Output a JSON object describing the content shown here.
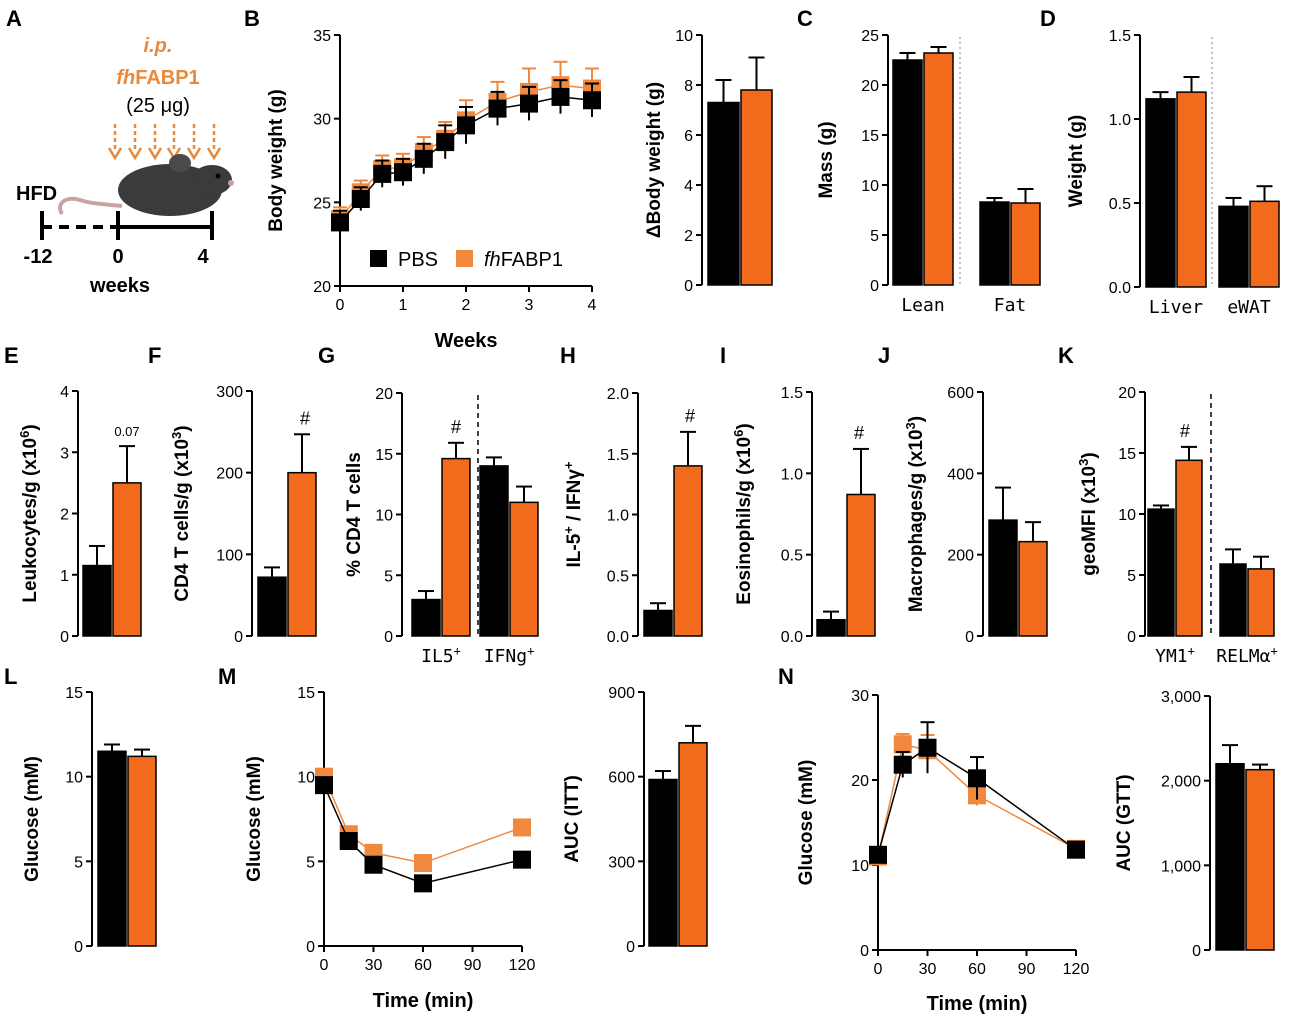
{
  "colors": {
    "pbs": "#000000",
    "fhfabp1": "#f26a1b",
    "marker_orange": "#f0883d",
    "schematic": "#e8893b"
  },
  "legend": {
    "pbs": "PBS",
    "fh": "fh",
    "fabp": "FABP1"
  },
  "panelA": {
    "label": "A",
    "ip": "i.p.",
    "fh": "fh",
    "fabp": "FABP1",
    "dose": "(25 μg)",
    "hfd": "HFD",
    "t1": "-12",
    "t2": "0",
    "t3": "4",
    "weeks": "weeks",
    "icons": [
      "mouse-icon",
      "dashed-arrow-icon"
    ]
  },
  "chart_data": [
    {
      "panel": "B1",
      "type": "line",
      "title": "",
      "xlabel": "Weeks",
      "ylabel": "Body weight (g)",
      "xlim": [
        0,
        4
      ],
      "ylim": [
        20,
        35
      ],
      "xticks": [
        "0",
        "1",
        "2",
        "3",
        "4"
      ],
      "yticks": [
        "20",
        "25",
        "30",
        "35"
      ],
      "series": [
        {
          "name": "PBS",
          "x": [
            0,
            0.33,
            0.67,
            1,
            1.33,
            1.67,
            2,
            2.5,
            3,
            3.5,
            4
          ],
          "y": [
            23.8,
            25.2,
            26.7,
            26.8,
            27.6,
            28.6,
            29.6,
            30.6,
            30.9,
            31.3,
            31.1
          ],
          "err": [
            0.7,
            0.7,
            0.8,
            0.8,
            0.9,
            1.0,
            1.1,
            1.0,
            1.0,
            1.0,
            1.0
          ]
        },
        {
          "name": "fhFABP1",
          "x": [
            0,
            0.33,
            0.67,
            1,
            1.33,
            1.67,
            2,
            2.5,
            3,
            3.5,
            4
          ],
          "y": [
            24.0,
            25.6,
            27.0,
            27.1,
            28.0,
            28.8,
            29.9,
            31.0,
            31.6,
            32.0,
            31.8
          ],
          "err": [
            0.7,
            0.7,
            0.8,
            0.8,
            0.9,
            1.0,
            1.2,
            1.2,
            1.4,
            1.4,
            1.2
          ]
        }
      ]
    },
    {
      "panel": "B2",
      "type": "bar",
      "ylabel": "ΔBody weight (g)",
      "ylim": [
        0,
        10
      ],
      "yticks": [
        "0",
        "2",
        "4",
        "6",
        "8",
        "10"
      ],
      "categories": [
        ""
      ],
      "series": [
        {
          "name": "PBS",
          "values": [
            7.3
          ],
          "err": [
            0.9
          ]
        },
        {
          "name": "fhFABP1",
          "values": [
            7.8
          ],
          "err": [
            1.3
          ]
        }
      ]
    },
    {
      "panel": "C",
      "label": "C",
      "type": "bar",
      "ylabel": "Mass (g)",
      "ylim": [
        0,
        25
      ],
      "yticks": [
        "0",
        "5",
        "10",
        "15",
        "20",
        "25"
      ],
      "categories": [
        "Lean",
        "Fat"
      ],
      "series": [
        {
          "name": "PBS",
          "values": [
            22.5,
            8.3
          ],
          "err": [
            0.7,
            0.4
          ]
        },
        {
          "name": "fhFABP1",
          "values": [
            23.2,
            8.2
          ],
          "err": [
            0.6,
            1.4
          ]
        }
      ]
    },
    {
      "panel": "D",
      "label": "D",
      "type": "bar",
      "ylabel": "Weight (g)",
      "ylim": [
        0,
        1.5
      ],
      "yticks": [
        "0.0",
        "0.5",
        "1.0",
        "1.5"
      ],
      "categories": [
        "Liver",
        "eWAT"
      ],
      "series": [
        {
          "name": "PBS",
          "values": [
            1.12,
            0.48
          ],
          "err": [
            0.04,
            0.05
          ]
        },
        {
          "name": "fhFABP1",
          "values": [
            1.16,
            0.51
          ],
          "err": [
            0.09,
            0.09
          ]
        }
      ]
    },
    {
      "panel": "E",
      "label": "E",
      "type": "bar",
      "ylabel": "Leukocytes/g (x10",
      "ysup": "6",
      "yclose": ")",
      "ylim": [
        0,
        4
      ],
      "yticks": [
        "0",
        "1",
        "2",
        "3",
        "4"
      ],
      "categories": [
        ""
      ],
      "series": [
        {
          "name": "PBS",
          "values": [
            1.15
          ],
          "err": [
            0.32
          ]
        },
        {
          "name": "fhFABP1",
          "values": [
            2.5
          ],
          "err": [
            0.6
          ]
        }
      ],
      "annotation": "0.07"
    },
    {
      "panel": "F",
      "label": "F",
      "type": "bar",
      "ylabel": "CD4 T cells/g (x10",
      "ysup": "3",
      "yclose": ")",
      "ylim": [
        0,
        300
      ],
      "yticks": [
        "0",
        "100",
        "200",
        "300"
      ],
      "categories": [
        ""
      ],
      "series": [
        {
          "name": "PBS",
          "values": [
            72
          ],
          "err": [
            12
          ]
        },
        {
          "name": "fhFABP1",
          "values": [
            200
          ],
          "err": [
            47
          ]
        }
      ],
      "annotation": "#"
    },
    {
      "panel": "G",
      "label": "G",
      "type": "bar",
      "ylabel": "% CD4 T cells",
      "ylim": [
        0,
        20
      ],
      "yticks": [
        "0",
        "5",
        "10",
        "15",
        "20"
      ],
      "categories": [
        "IL5",
        "IFNg"
      ],
      "series": [
        {
          "name": "PBS",
          "values": [
            3.0,
            14.0
          ],
          "err": [
            0.7,
            0.7
          ]
        },
        {
          "name": "fhFABP1",
          "values": [
            14.6,
            11.0
          ],
          "err": [
            1.3,
            1.3
          ]
        }
      ],
      "annotation": "#"
    },
    {
      "panel": "H",
      "label": "H",
      "type": "bar",
      "ylabel": "IL-5",
      "ysup": "+",
      "ymid": " / IFNγ",
      "ysup2": "+",
      "ylim": [
        0,
        2
      ],
      "yticks": [
        "0.0",
        "0.5",
        "1.0",
        "1.5",
        "2.0"
      ],
      "categories": [
        ""
      ],
      "series": [
        {
          "name": "PBS",
          "values": [
            0.21
          ],
          "err": [
            0.06
          ]
        },
        {
          "name": "fhFABP1",
          "values": [
            1.4
          ],
          "err": [
            0.28
          ]
        }
      ],
      "annotation": "#"
    },
    {
      "panel": "I",
      "label": "I",
      "type": "bar",
      "ylabel": "Eosinophils/g (x10",
      "ysup": "6",
      "yclose": ")",
      "ylim": [
        0,
        1.5
      ],
      "yticks": [
        "0.0",
        "0.5",
        "1.0",
        "1.5"
      ],
      "categories": [
        ""
      ],
      "series": [
        {
          "name": "PBS",
          "values": [
            0.1
          ],
          "err": [
            0.05
          ]
        },
        {
          "name": "fhFABP1",
          "values": [
            0.87
          ],
          "err": [
            0.28
          ]
        }
      ],
      "annotation": "#"
    },
    {
      "panel": "J",
      "label": "J",
      "type": "bar",
      "ylabel": "Macrophages/g (x10",
      "ysup": "3",
      "yclose": ")",
      "ylim": [
        0,
        600
      ],
      "yticks": [
        "0",
        "200",
        "400",
        "600"
      ],
      "categories": [
        ""
      ],
      "series": [
        {
          "name": "PBS",
          "values": [
            285
          ],
          "err": [
            80
          ]
        },
        {
          "name": "fhFABP1",
          "values": [
            232
          ],
          "err": [
            48
          ]
        }
      ]
    },
    {
      "panel": "K",
      "label": "K",
      "type": "bar",
      "ylabel": "geoMFI (x10",
      "ysup": "3",
      "yclose": ")",
      "ylim": [
        0,
        20
      ],
      "yticks": [
        "0",
        "5",
        "10",
        "15",
        "20"
      ],
      "categories": [
        "YM1",
        "RELMα"
      ],
      "series": [
        {
          "name": "PBS",
          "values": [
            10.4,
            5.9
          ],
          "err": [
            0.3,
            1.2
          ]
        },
        {
          "name": "fhFABP1",
          "values": [
            14.4,
            5.5
          ],
          "err": [
            1.1,
            1.0
          ]
        }
      ],
      "annotation": "#"
    },
    {
      "panel": "L",
      "label": "L",
      "type": "bar",
      "ylabel": "Glucose (mM)",
      "ylim": [
        0,
        15
      ],
      "yticks": [
        "0",
        "5",
        "10",
        "15"
      ],
      "categories": [
        ""
      ],
      "series": [
        {
          "name": "PBS",
          "values": [
            11.5
          ],
          "err": [
            0.4
          ]
        },
        {
          "name": "fhFABP1",
          "values": [
            11.2
          ],
          "err": [
            0.4
          ]
        }
      ]
    },
    {
      "panel": "M1",
      "label": "M",
      "type": "line",
      "xlabel": "Time (min)",
      "ylabel": "Glucose (mM)",
      "xlim": [
        0,
        120
      ],
      "ylim": [
        0,
        15
      ],
      "xticks": [
        "0",
        "30",
        "60",
        "90",
        "120"
      ],
      "yticks": [
        "0",
        "5",
        "10",
        "15"
      ],
      "series": [
        {
          "name": "PBS",
          "x": [
            0,
            15,
            30,
            60,
            120
          ],
          "y": [
            9.5,
            6.2,
            4.8,
            3.7,
            5.1
          ]
        },
        {
          "name": "fhFABP1",
          "x": [
            0,
            15,
            30,
            60,
            120
          ],
          "y": [
            10.0,
            6.6,
            5.5,
            4.9,
            7.0
          ]
        }
      ]
    },
    {
      "panel": "M2",
      "type": "bar",
      "ylabel": "AUC (ITT)",
      "ylim": [
        0,
        900
      ],
      "yticks": [
        "0",
        "300",
        "600",
        "900"
      ],
      "categories": [
        ""
      ],
      "series": [
        {
          "name": "PBS",
          "values": [
            590
          ],
          "err": [
            30
          ]
        },
        {
          "name": "fhFABP1",
          "values": [
            720
          ],
          "err": [
            60
          ]
        }
      ]
    },
    {
      "panel": "N1",
      "label": "N",
      "type": "line",
      "xlabel": "Time (min)",
      "ylabel": "Glucose (mM)",
      "xlim": [
        0,
        120
      ],
      "ylim": [
        0,
        30
      ],
      "xticks": [
        "0",
        "30",
        "60",
        "90",
        "120"
      ],
      "yticks": [
        "0",
        "10",
        "20",
        "30"
      ],
      "series": [
        {
          "name": "PBS",
          "x": [
            0,
            15,
            30,
            60,
            120
          ],
          "y": [
            11.2,
            21.8,
            23.8,
            20.2,
            11.8
          ],
          "err": [
            0.6,
            1.5,
            3.0,
            2.5,
            0.6
          ]
        },
        {
          "name": "fhFABP1",
          "x": [
            0,
            15,
            30,
            60,
            120
          ],
          "y": [
            11.0,
            24.2,
            23.5,
            18.2,
            11.9
          ],
          "err": [
            0.5,
            1.2,
            1.8,
            1.2,
            0.5
          ]
        }
      ]
    },
    {
      "panel": "N2",
      "type": "bar",
      "ylabel": "AUC (GTT)",
      "ylim": [
        0,
        3000
      ],
      "yticks": [
        "0",
        "1,000",
        "2,000",
        "3,000"
      ],
      "categories": [
        ""
      ],
      "series": [
        {
          "name": "PBS",
          "values": [
            2200
          ],
          "err": [
            220
          ]
        },
        {
          "name": "fhFABP1",
          "values": [
            2130
          ],
          "err": [
            60
          ]
        }
      ]
    }
  ]
}
